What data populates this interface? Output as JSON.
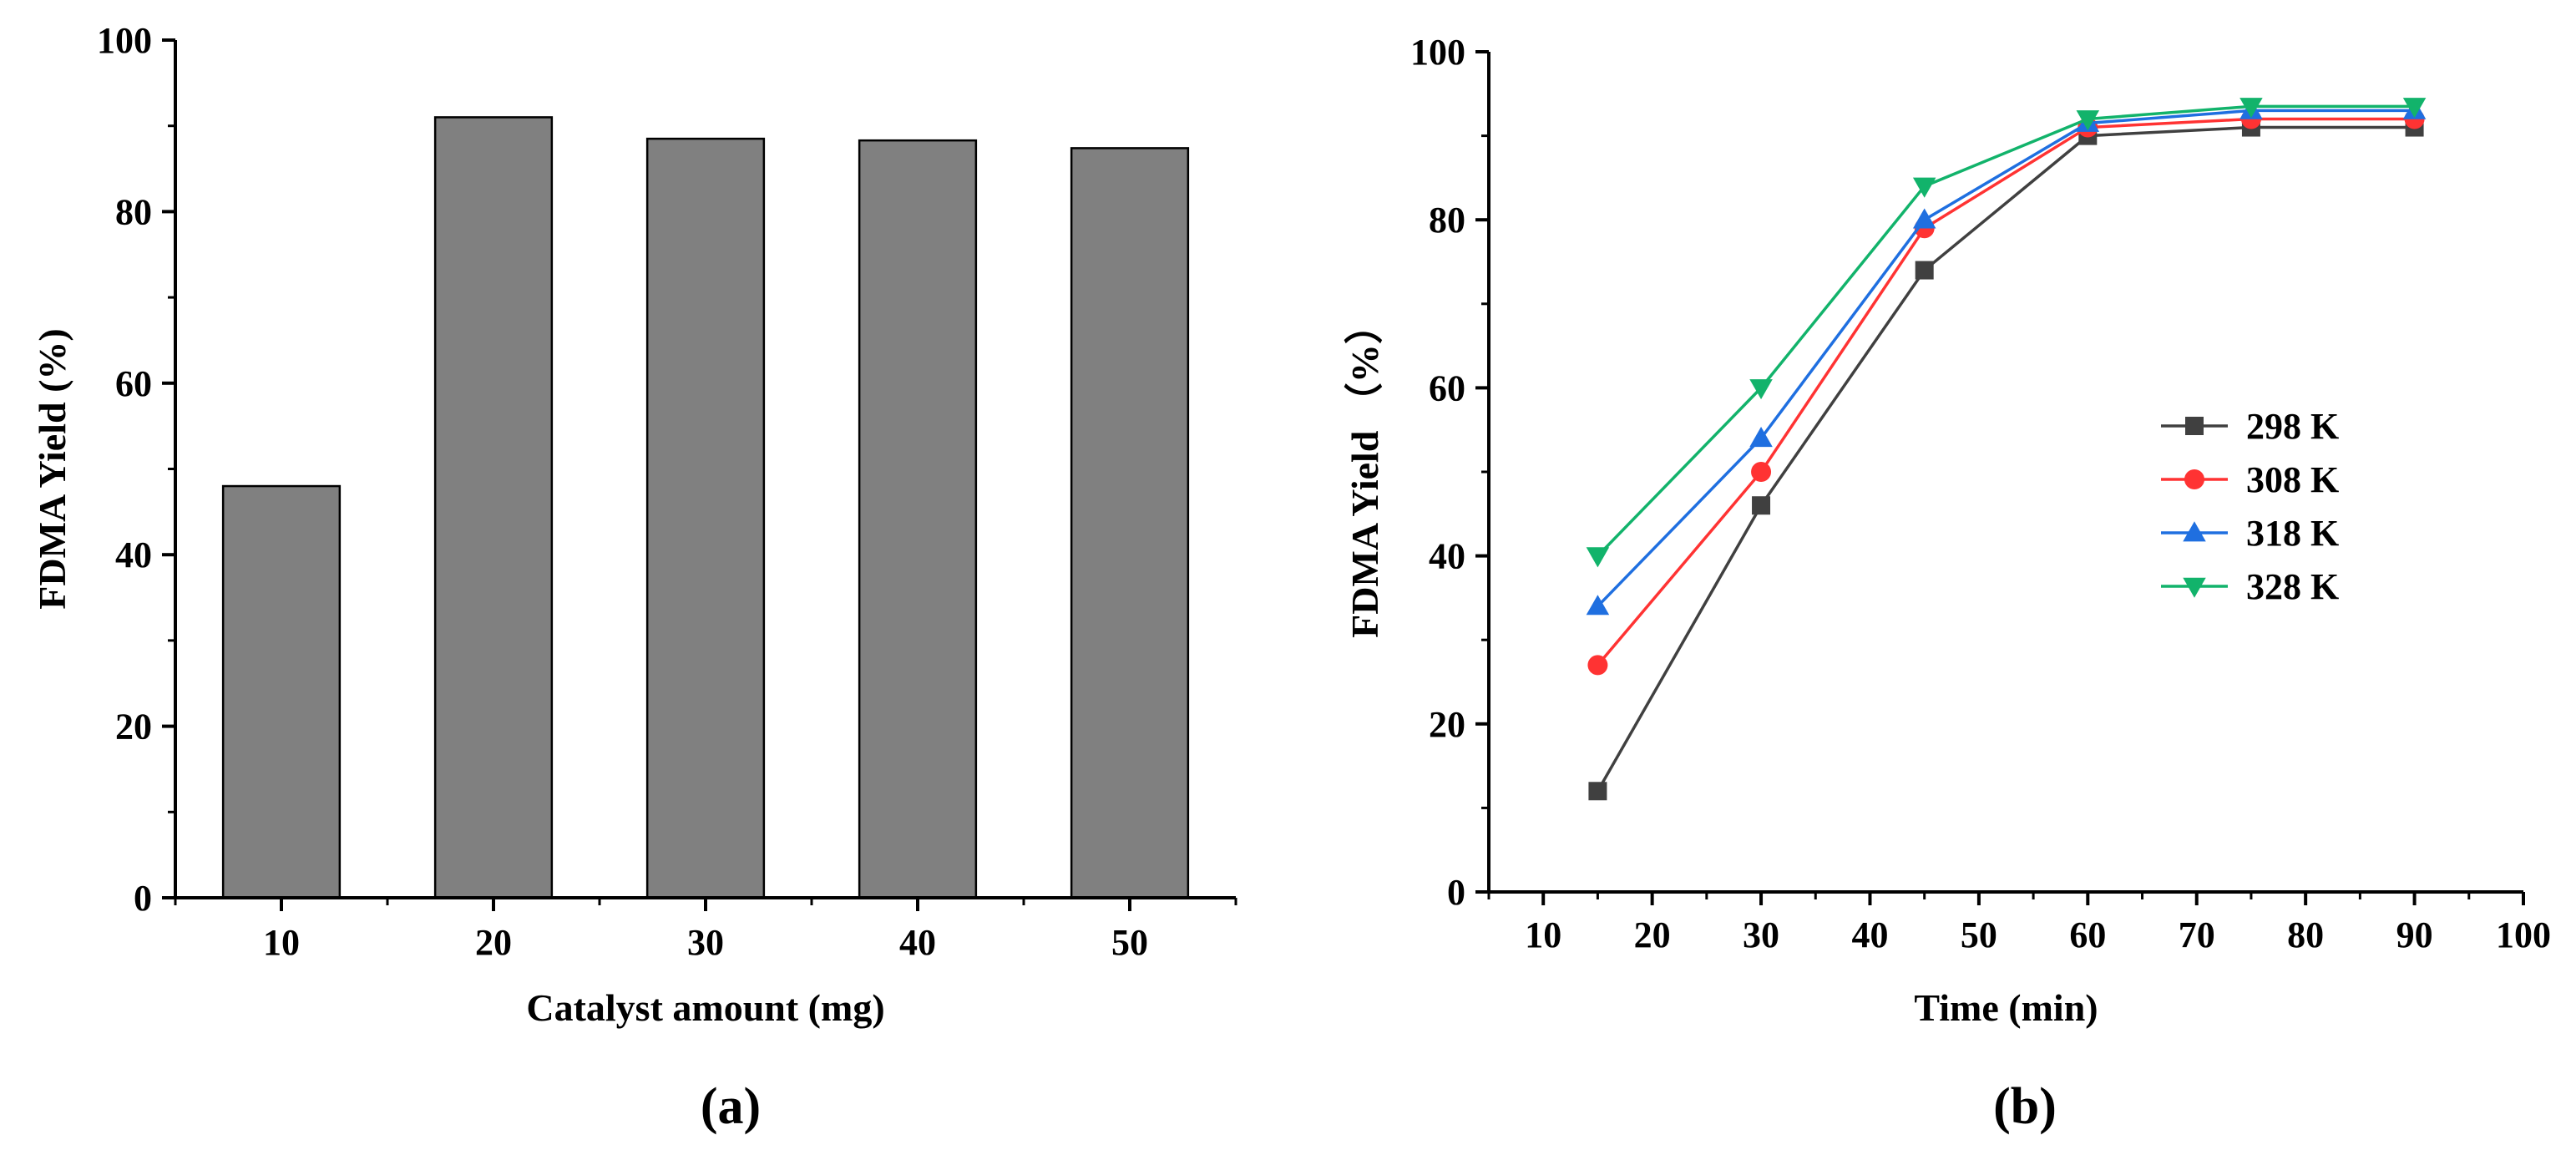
{
  "chart_data": [
    {
      "type": "bar",
      "panel_label": "(a)",
      "title": "",
      "xlabel": "Catalyst amount (mg)",
      "ylabel": "FDMA Yield (%)",
      "categories": [
        "10",
        "20",
        "30",
        "40",
        "50"
      ],
      "values": [
        48,
        91,
        88.5,
        88.3,
        87.4
      ],
      "ylim": [
        0,
        100
      ],
      "yticks": [
        0,
        20,
        40,
        60,
        80,
        100
      ],
      "grid": false,
      "colors": {
        "bar": "#808080",
        "edge": "#000000"
      }
    },
    {
      "type": "line",
      "panel_label": "(b)",
      "title": "",
      "xlabel": "Time (min)",
      "ylabel": "FDMA Yield （%）",
      "x": [
        15,
        30,
        45,
        60,
        75,
        90
      ],
      "xlim": [
        5,
        100
      ],
      "xticks": [
        10,
        20,
        30,
        40,
        50,
        60,
        70,
        80,
        90,
        100
      ],
      "ylim": [
        0,
        100
      ],
      "yticks": [
        0,
        20,
        40,
        60,
        80,
        100
      ],
      "grid": false,
      "legend_position": "center-right",
      "series": [
        {
          "name": "298 K",
          "marker": "square",
          "color": "#404040",
          "values": [
            12,
            46,
            74,
            90,
            91,
            91
          ]
        },
        {
          "name": "308 K",
          "marker": "circle",
          "color": "#ff3333",
          "values": [
            27,
            50,
            79,
            91,
            92,
            92
          ]
        },
        {
          "name": "318 K",
          "marker": "triangle-up",
          "color": "#1f6fe0",
          "values": [
            34,
            54,
            80,
            91.5,
            93,
            93
          ]
        },
        {
          "name": "328 K",
          "marker": "triangle-down",
          "color": "#12b36b",
          "values": [
            40,
            60,
            84,
            92,
            93.5,
            93.5
          ]
        }
      ]
    }
  ]
}
